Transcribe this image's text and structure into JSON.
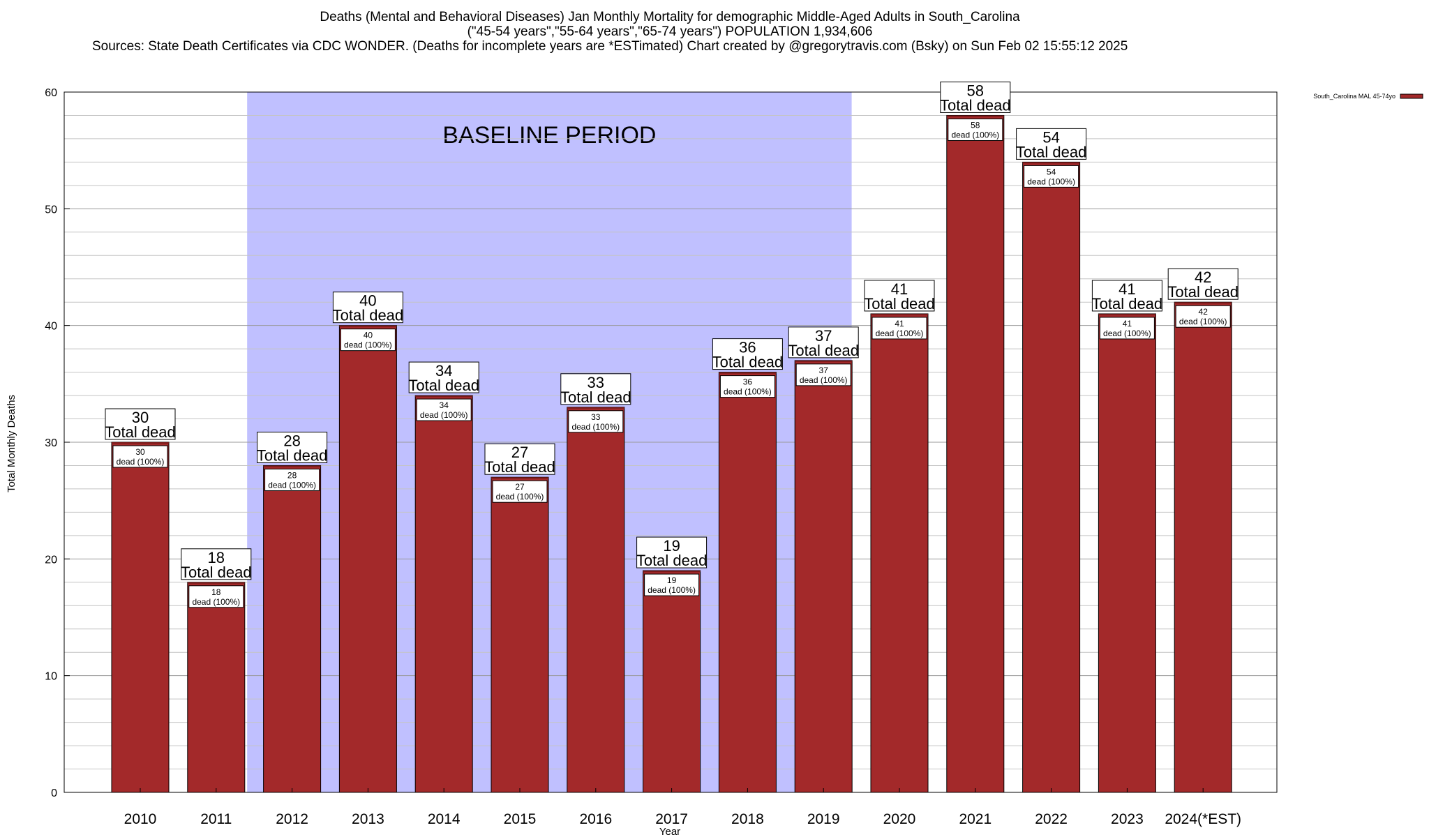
{
  "chart_data": {
    "type": "bar",
    "title_lines": [
      "Deaths (Mental and Behavioral Diseases) Jan Monthly Mortality for demographic Middle-Aged Adults in South_Carolina",
      "(\"45-54 years\",\"55-64 years\",\"65-74 years\") POPULATION 1,934,606",
      "Sources: State Death Certificates via CDC WONDER. (Deaths for incomplete years are *ESTimated)                 Chart created by @gregorytravis.com (Bsky) on Sun Feb 02 15:55:12 2025"
    ],
    "xlabel": "Year",
    "ylabel": "Total Monthly Deaths",
    "ylim": [
      0,
      60
    ],
    "yticks": [
      0,
      10,
      20,
      30,
      40,
      50,
      60
    ],
    "grid": true,
    "categories": [
      "2010",
      "2011",
      "2012",
      "2013",
      "2014",
      "2015",
      "2016",
      "2017",
      "2018",
      "2019",
      "2020",
      "2021",
      "2022",
      "2023",
      "2024(*EST)"
    ],
    "series": [
      {
        "name": "South_Carolina MAL 45-74yo",
        "color": "#a3292a",
        "values": [
          30,
          18,
          28,
          40,
          34,
          27,
          33,
          19,
          36,
          37,
          41,
          58,
          54,
          41,
          42
        ]
      }
    ],
    "total_label_suffix": "Total dead",
    "segment_label_suffix": "dead (100%)",
    "baseline_period": {
      "label": "BASELINE PERIOD",
      "from_category": "2012",
      "to_category": "2019",
      "color": "#c0c0ff"
    },
    "legend_position": "top-right"
  }
}
